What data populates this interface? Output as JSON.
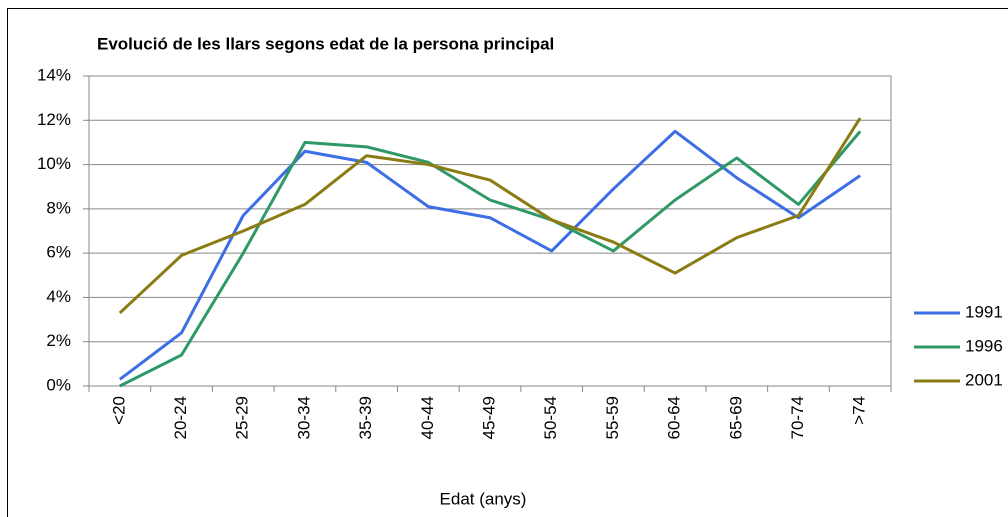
{
  "chart_data": {
    "type": "line",
    "title": "Evolució de les llars segons edat de la persona principal",
    "x_label": "Edat (anys)",
    "categories": [
      "<20",
      "20-24",
      "25-29",
      "30-34",
      "35-39",
      "40-44",
      "45-49",
      "50-54",
      "55-59",
      "60-64",
      "65-69",
      "70-74",
      ">74"
    ],
    "series": [
      {
        "name": "1991",
        "color": "#3d6ee6",
        "values": [
          0.3,
          2.4,
          7.7,
          10.6,
          10.1,
          8.1,
          7.6,
          6.1,
          8.9,
          11.5,
          9.4,
          7.6,
          9.5
        ]
      },
      {
        "name": "1996",
        "color": "#2f9966",
        "values": [
          0.0,
          1.4,
          6.0,
          11.0,
          10.8,
          10.1,
          8.4,
          7.5,
          6.1,
          8.4,
          10.3,
          8.2,
          11.5
        ]
      },
      {
        "name": "2001",
        "color": "#8a7c12",
        "values": [
          3.3,
          5.9,
          7.0,
          8.2,
          10.4,
          10.0,
          9.3,
          7.5,
          6.5,
          5.1,
          6.7,
          7.7,
          12.1
        ]
      }
    ],
    "ylim": [
      0,
      14
    ],
    "yticks": [
      {
        "value": 0,
        "label": "0%"
      },
      {
        "value": 2,
        "label": "2%"
      },
      {
        "value": 4,
        "label": "4%"
      },
      {
        "value": 6,
        "label": "6%"
      },
      {
        "value": 8,
        "label": "8%"
      },
      {
        "value": 10,
        "label": "10%"
      },
      {
        "value": 12,
        "label": "12%"
      },
      {
        "value": 14,
        "label": "14%"
      }
    ],
    "grid": true,
    "legend": "right"
  }
}
